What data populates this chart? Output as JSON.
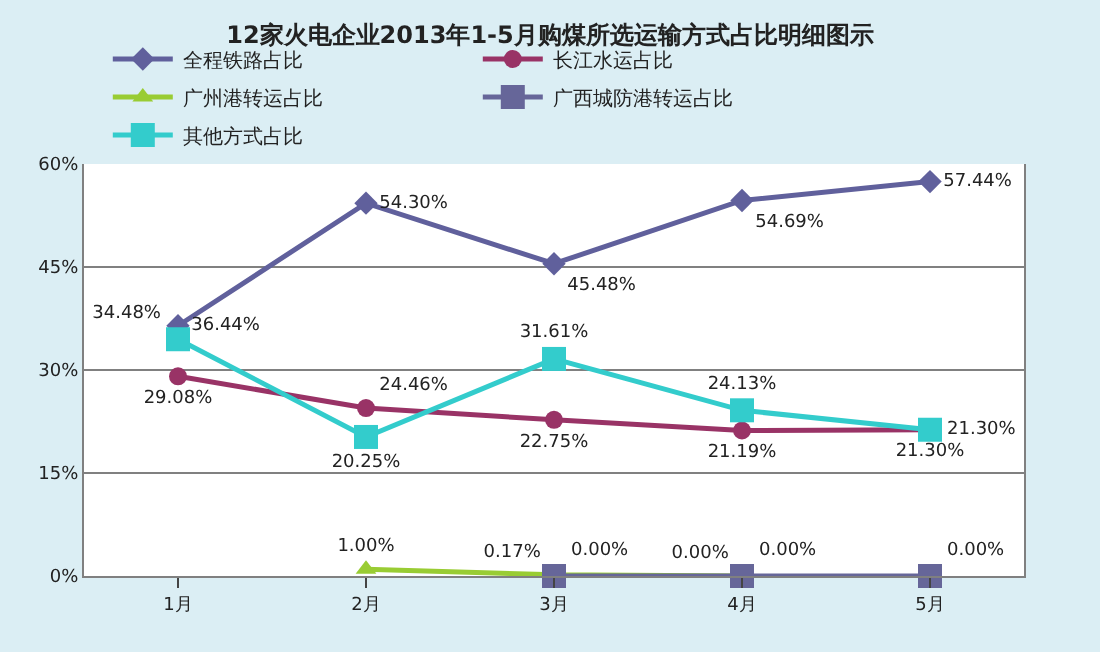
{
  "chart_data": {
    "type": "line",
    "title": "12家火电企业2013年1-5月购煤所选运输方式占比明细图示",
    "categories": [
      "1月",
      "2月",
      "3月",
      "4月",
      "5月"
    ],
    "series": [
      {
        "name": "全程铁路占比",
        "color": "#60609c",
        "marker": "diamond",
        "values": [
          36.44,
          54.3,
          45.48,
          54.69,
          57.44
        ],
        "value_labels": [
          "36.44%",
          "54.30%",
          "45.48%",
          "54.69%",
          "57.44%"
        ]
      },
      {
        "name": "长江水运占比",
        "color": "#993366",
        "marker": "circle",
        "values": [
          29.08,
          24.46,
          22.75,
          21.19,
          21.3
        ],
        "value_labels": [
          "29.08%",
          "24.46%",
          "22.75%",
          "21.19%",
          "21.30%"
        ]
      },
      {
        "name": "广州港转运占比",
        "color": "#99cc33",
        "marker": "triangle",
        "values": [
          null,
          1.0,
          0.17,
          0.0,
          null
        ],
        "value_labels": [
          null,
          "1.00%",
          "0.17%",
          "0.00%",
          null
        ]
      },
      {
        "name": "广西城防港转运占比",
        "color": "#666699",
        "marker": "square",
        "values": [
          null,
          null,
          0.0,
          0.0,
          0.0
        ],
        "value_labels": [
          null,
          null,
          "0.00%",
          "0.00%",
          "0.00%"
        ]
      },
      {
        "name": "其他方式占比",
        "color": "#33cccc",
        "marker": "square",
        "values": [
          34.48,
          20.25,
          31.61,
          24.13,
          21.3
        ],
        "value_labels": [
          "34.48%",
          "20.25%",
          "31.61%",
          "24.13%",
          "21.30%"
        ]
      }
    ],
    "ylim": [
      0,
      60
    ],
    "yticks": [
      {
        "value": 0,
        "label": "0%"
      },
      {
        "value": 15,
        "label": "15%"
      },
      {
        "value": 30,
        "label": "30%"
      },
      {
        "value": 45,
        "label": "45%"
      },
      {
        "value": 60,
        "label": "60%"
      }
    ],
    "grid": "y",
    "legend": "top",
    "line_style": "solid"
  }
}
